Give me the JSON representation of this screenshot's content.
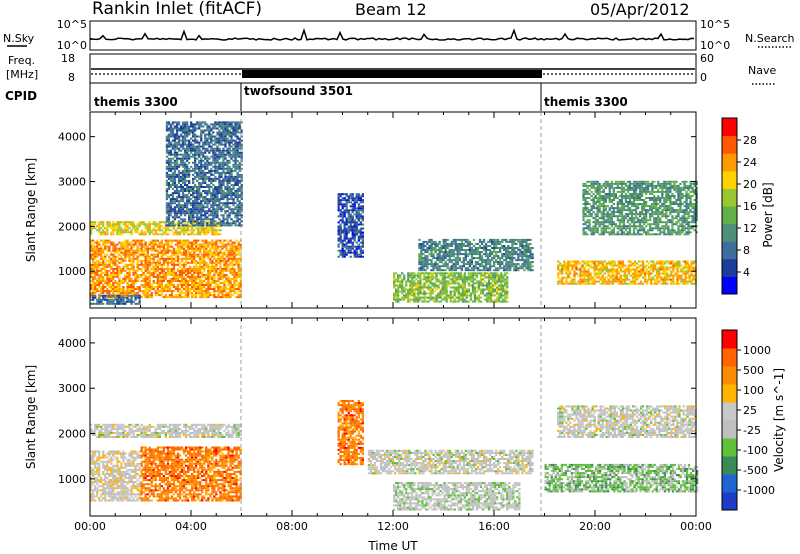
{
  "header": {
    "station": "Rankin Inlet (fitACF)",
    "beam": "Beam 12",
    "date": "05/Apr/2012"
  },
  "noise_panel": {
    "left_label": "N.Sky",
    "right_label": "N.Search",
    "left_ticks": [
      "10^5",
      "10^0"
    ],
    "right_ticks": [
      "10^5",
      "10^0"
    ]
  },
  "freq_panel": {
    "left_label_line1": "Freq.",
    "left_label_line2": "[MHz]",
    "left_ticks": [
      "18",
      "8"
    ],
    "right_label": "Nave",
    "right_ticks": [
      "60",
      "0"
    ]
  },
  "cpid": {
    "label": "CPID",
    "segments": [
      {
        "name": "themis 3300",
        "start_h": 0,
        "end_h": 6
      },
      {
        "name": "twofsound 3501",
        "start_h": 6,
        "end_h": 18
      },
      {
        "name": "themis 3300",
        "start_h": 18,
        "end_h": 24
      }
    ]
  },
  "chart_data": [
    {
      "type": "heatmap",
      "title": "Power",
      "xlabel": "Time UT",
      "ylabel": "Slant Range [km]",
      "xlim": [
        0,
        24
      ],
      "ylim": [
        180,
        4550
      ],
      "x_ticks": [
        "00:00",
        "04:00",
        "08:00",
        "12:00",
        "16:00",
        "20:00",
        "00:00"
      ],
      "y_ticks": [
        "1000",
        "2000",
        "3000",
        "4000"
      ],
      "colorbar": {
        "label": "Power [dB]",
        "ticks": [
          "28",
          "24",
          "20",
          "16",
          "12",
          "8",
          "4"
        ],
        "range": [
          0,
          32
        ],
        "colors": [
          "#0000ff",
          "#1e3c9c",
          "#3e6e9a",
          "#4e8f78",
          "#62b048",
          "#98c830",
          "#ffd200",
          "#ff9a00",
          "#ff5800",
          "#ff0000"
        ]
      },
      "regions": [
        {
          "t0": 0.0,
          "t1": 6.0,
          "r0": 400,
          "r1": 1700,
          "level": 24
        },
        {
          "t0": 0.0,
          "t1": 5.2,
          "r0": 1800,
          "r1": 2100,
          "level": 20
        },
        {
          "t0": 0.0,
          "t1": 2.0,
          "r0": 250,
          "r1": 450,
          "level": 8
        },
        {
          "t0": 3.0,
          "t1": 6.0,
          "r0": 2000,
          "r1": 4300,
          "level": 8
        },
        {
          "t0": 9.8,
          "t1": 10.8,
          "r0": 1300,
          "r1": 2700,
          "level": 6
        },
        {
          "t0": 12.0,
          "t1": 16.5,
          "r0": 300,
          "r1": 950,
          "level": 16
        },
        {
          "t0": 13.0,
          "t1": 17.5,
          "r0": 1000,
          "r1": 1700,
          "level": 10
        },
        {
          "t0": 18.5,
          "t1": 24.0,
          "r0": 700,
          "r1": 1200,
          "level": 22
        },
        {
          "t0": 19.5,
          "t1": 24.0,
          "r0": 1800,
          "r1": 3000,
          "level": 12
        }
      ]
    },
    {
      "type": "heatmap",
      "title": "Velocity",
      "xlabel": "Time UT",
      "ylabel": "Slant Range [km]",
      "xlim": [
        0,
        24
      ],
      "ylim": [
        180,
        4550
      ],
      "x_ticks": [
        "00:00",
        "04:00",
        "08:00",
        "12:00",
        "16:00",
        "20:00",
        "00:00"
      ],
      "y_ticks": [
        "1000",
        "2000",
        "3000",
        "4000"
      ],
      "colorbar": {
        "label": "Velocity [m s^-1]",
        "ticks": [
          "1000",
          "500",
          "100",
          "25",
          "-25",
          "-100",
          "-500",
          "-1000"
        ],
        "range": [
          -1200,
          1200
        ],
        "colors": [
          "#1e3cc8",
          "#1e64d2",
          "#3c8a5a",
          "#5fc03a",
          "#bfbfbf",
          "#c8c8c8",
          "#ffb400",
          "#ff8c00",
          "#ff6400",
          "#ff0000"
        ]
      },
      "regions": [
        {
          "t0": 0.0,
          "t1": 2.0,
          "r0": 500,
          "r1": 1600,
          "level": 80
        },
        {
          "t0": 2.0,
          "t1": 6.0,
          "r0": 500,
          "r1": 1700,
          "level": 700
        },
        {
          "t0": 0.0,
          "t1": 6.0,
          "r0": 1900,
          "r1": 2200,
          "level": 0
        },
        {
          "t0": 9.8,
          "t1": 10.8,
          "r0": 1300,
          "r1": 2700,
          "level": 700
        },
        {
          "t0": 12.0,
          "t1": 17.0,
          "r0": 300,
          "r1": 900,
          "level": -80
        },
        {
          "t0": 11.0,
          "t1": 17.5,
          "r0": 1100,
          "r1": 1600,
          "level": 0
        },
        {
          "t0": 18.0,
          "t1": 24.0,
          "r0": 700,
          "r1": 1300,
          "level": -300
        },
        {
          "t0": 18.5,
          "t1": 24.0,
          "r0": 1900,
          "r1": 2600,
          "level": 0
        }
      ]
    }
  ]
}
